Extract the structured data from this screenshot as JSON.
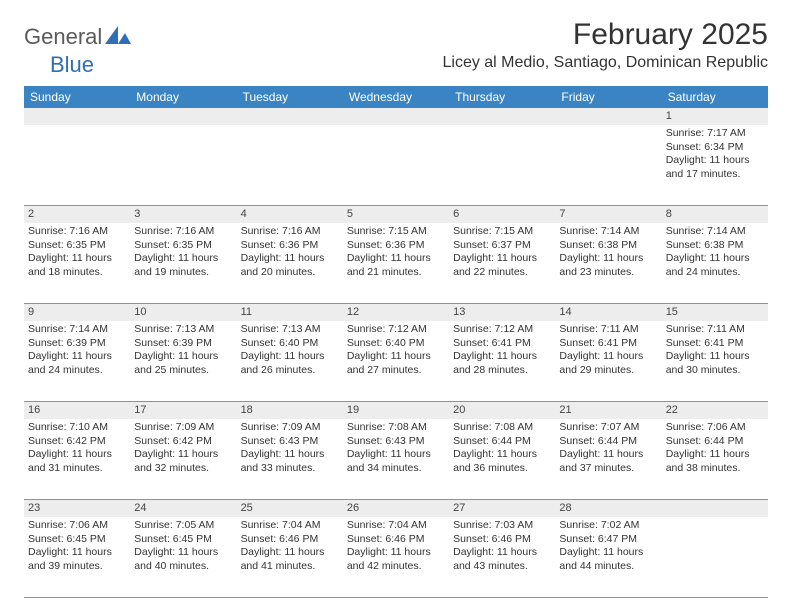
{
  "logo": {
    "part1": "General",
    "part2": "Blue"
  },
  "title": "February 2025",
  "location": "Licey al Medio, Santiago, Dominican Republic",
  "colors": {
    "header_bg": "#3b84c4",
    "header_text": "#ffffff",
    "strip_bg": "#ededed",
    "text": "#333333",
    "logo_gray": "#5a5a5a",
    "logo_blue": "#2e6fb5",
    "row_border": "#7a96b0"
  },
  "day_names": [
    "Sunday",
    "Monday",
    "Tuesday",
    "Wednesday",
    "Thursday",
    "Friday",
    "Saturday"
  ],
  "weeks": [
    [
      {
        "n": "",
        "sunrise": "",
        "sunset": "",
        "day": ""
      },
      {
        "n": "",
        "sunrise": "",
        "sunset": "",
        "day": ""
      },
      {
        "n": "",
        "sunrise": "",
        "sunset": "",
        "day": ""
      },
      {
        "n": "",
        "sunrise": "",
        "sunset": "",
        "day": ""
      },
      {
        "n": "",
        "sunrise": "",
        "sunset": "",
        "day": ""
      },
      {
        "n": "",
        "sunrise": "",
        "sunset": "",
        "day": ""
      },
      {
        "n": "1",
        "sunrise": "Sunrise: 7:17 AM",
        "sunset": "Sunset: 6:34 PM",
        "day": "Daylight: 11 hours and 17 minutes."
      }
    ],
    [
      {
        "n": "2",
        "sunrise": "Sunrise: 7:16 AM",
        "sunset": "Sunset: 6:35 PM",
        "day": "Daylight: 11 hours and 18 minutes."
      },
      {
        "n": "3",
        "sunrise": "Sunrise: 7:16 AM",
        "sunset": "Sunset: 6:35 PM",
        "day": "Daylight: 11 hours and 19 minutes."
      },
      {
        "n": "4",
        "sunrise": "Sunrise: 7:16 AM",
        "sunset": "Sunset: 6:36 PM",
        "day": "Daylight: 11 hours and 20 minutes."
      },
      {
        "n": "5",
        "sunrise": "Sunrise: 7:15 AM",
        "sunset": "Sunset: 6:36 PM",
        "day": "Daylight: 11 hours and 21 minutes."
      },
      {
        "n": "6",
        "sunrise": "Sunrise: 7:15 AM",
        "sunset": "Sunset: 6:37 PM",
        "day": "Daylight: 11 hours and 22 minutes."
      },
      {
        "n": "7",
        "sunrise": "Sunrise: 7:14 AM",
        "sunset": "Sunset: 6:38 PM",
        "day": "Daylight: 11 hours and 23 minutes."
      },
      {
        "n": "8",
        "sunrise": "Sunrise: 7:14 AM",
        "sunset": "Sunset: 6:38 PM",
        "day": "Daylight: 11 hours and 24 minutes."
      }
    ],
    [
      {
        "n": "9",
        "sunrise": "Sunrise: 7:14 AM",
        "sunset": "Sunset: 6:39 PM",
        "day": "Daylight: 11 hours and 24 minutes."
      },
      {
        "n": "10",
        "sunrise": "Sunrise: 7:13 AM",
        "sunset": "Sunset: 6:39 PM",
        "day": "Daylight: 11 hours and 25 minutes."
      },
      {
        "n": "11",
        "sunrise": "Sunrise: 7:13 AM",
        "sunset": "Sunset: 6:40 PM",
        "day": "Daylight: 11 hours and 26 minutes."
      },
      {
        "n": "12",
        "sunrise": "Sunrise: 7:12 AM",
        "sunset": "Sunset: 6:40 PM",
        "day": "Daylight: 11 hours and 27 minutes."
      },
      {
        "n": "13",
        "sunrise": "Sunrise: 7:12 AM",
        "sunset": "Sunset: 6:41 PM",
        "day": "Daylight: 11 hours and 28 minutes."
      },
      {
        "n": "14",
        "sunrise": "Sunrise: 7:11 AM",
        "sunset": "Sunset: 6:41 PM",
        "day": "Daylight: 11 hours and 29 minutes."
      },
      {
        "n": "15",
        "sunrise": "Sunrise: 7:11 AM",
        "sunset": "Sunset: 6:41 PM",
        "day": "Daylight: 11 hours and 30 minutes."
      }
    ],
    [
      {
        "n": "16",
        "sunrise": "Sunrise: 7:10 AM",
        "sunset": "Sunset: 6:42 PM",
        "day": "Daylight: 11 hours and 31 minutes."
      },
      {
        "n": "17",
        "sunrise": "Sunrise: 7:09 AM",
        "sunset": "Sunset: 6:42 PM",
        "day": "Daylight: 11 hours and 32 minutes."
      },
      {
        "n": "18",
        "sunrise": "Sunrise: 7:09 AM",
        "sunset": "Sunset: 6:43 PM",
        "day": "Daylight: 11 hours and 33 minutes."
      },
      {
        "n": "19",
        "sunrise": "Sunrise: 7:08 AM",
        "sunset": "Sunset: 6:43 PM",
        "day": "Daylight: 11 hours and 34 minutes."
      },
      {
        "n": "20",
        "sunrise": "Sunrise: 7:08 AM",
        "sunset": "Sunset: 6:44 PM",
        "day": "Daylight: 11 hours and 36 minutes."
      },
      {
        "n": "21",
        "sunrise": "Sunrise: 7:07 AM",
        "sunset": "Sunset: 6:44 PM",
        "day": "Daylight: 11 hours and 37 minutes."
      },
      {
        "n": "22",
        "sunrise": "Sunrise: 7:06 AM",
        "sunset": "Sunset: 6:44 PM",
        "day": "Daylight: 11 hours and 38 minutes."
      }
    ],
    [
      {
        "n": "23",
        "sunrise": "Sunrise: 7:06 AM",
        "sunset": "Sunset: 6:45 PM",
        "day": "Daylight: 11 hours and 39 minutes."
      },
      {
        "n": "24",
        "sunrise": "Sunrise: 7:05 AM",
        "sunset": "Sunset: 6:45 PM",
        "day": "Daylight: 11 hours and 40 minutes."
      },
      {
        "n": "25",
        "sunrise": "Sunrise: 7:04 AM",
        "sunset": "Sunset: 6:46 PM",
        "day": "Daylight: 11 hours and 41 minutes."
      },
      {
        "n": "26",
        "sunrise": "Sunrise: 7:04 AM",
        "sunset": "Sunset: 6:46 PM",
        "day": "Daylight: 11 hours and 42 minutes."
      },
      {
        "n": "27",
        "sunrise": "Sunrise: 7:03 AM",
        "sunset": "Sunset: 6:46 PM",
        "day": "Daylight: 11 hours and 43 minutes."
      },
      {
        "n": "28",
        "sunrise": "Sunrise: 7:02 AM",
        "sunset": "Sunset: 6:47 PM",
        "day": "Daylight: 11 hours and 44 minutes."
      },
      {
        "n": "",
        "sunrise": "",
        "sunset": "",
        "day": ""
      }
    ]
  ]
}
